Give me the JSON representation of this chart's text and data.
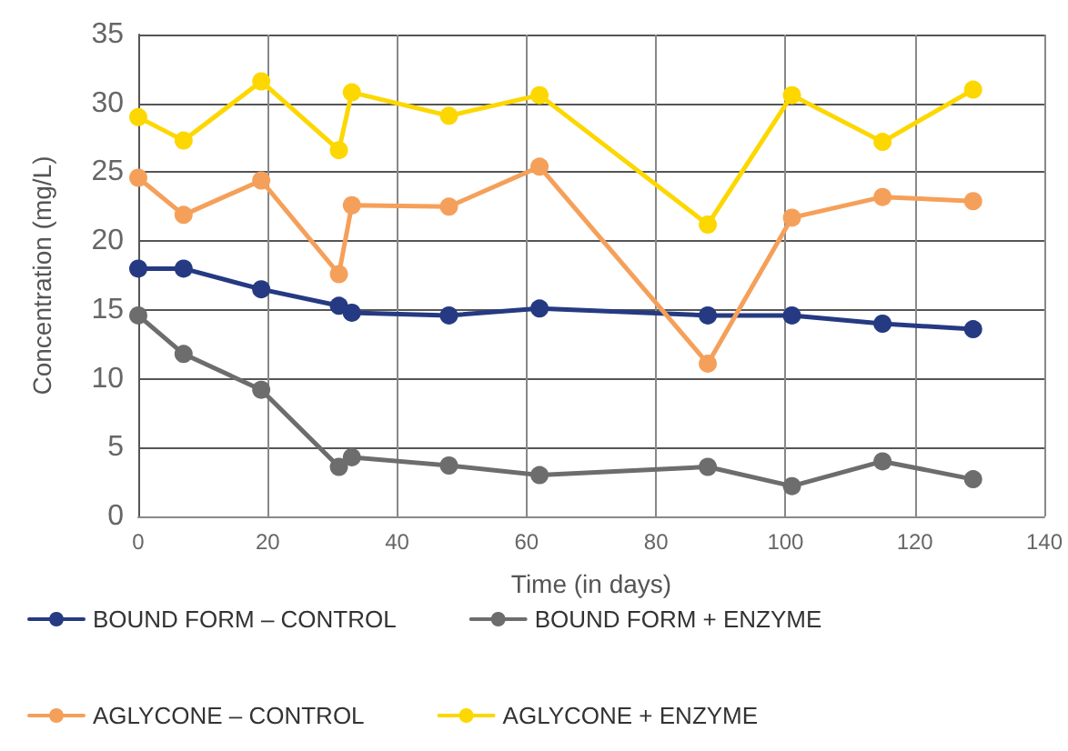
{
  "chart_data": {
    "type": "line",
    "xlabel": "Time (in days)",
    "ylabel": "Concentration (mg/L)",
    "x": [
      0,
      7,
      19,
      31,
      33,
      48,
      62,
      88,
      101,
      115,
      129
    ],
    "series": [
      {
        "name": "BOUND FORM – CONTROL",
        "color": "#253a82",
        "values": [
          18.0,
          18.0,
          16.5,
          15.3,
          14.8,
          14.6,
          15.1,
          14.6,
          14.6,
          14.0,
          13.6
        ]
      },
      {
        "name": "BOUND FORM + ENZYME",
        "color": "#6d6d6d",
        "values": [
          14.6,
          11.8,
          9.2,
          3.6,
          4.3,
          3.7,
          3.0,
          3.6,
          2.2,
          4.0,
          2.7
        ]
      },
      {
        "name": "AGLYCONE – CONTROL",
        "color": "#f5a05a",
        "values": [
          24.6,
          21.9,
          24.4,
          17.6,
          22.6,
          22.5,
          25.4,
          11.1,
          21.7,
          23.2,
          22.9
        ]
      },
      {
        "name": "AGLYCONE + ENZYME",
        "color": "#fdd700",
        "values": [
          29.0,
          27.3,
          31.6,
          26.6,
          30.8,
          29.1,
          30.6,
          21.2,
          30.6,
          27.2,
          31.0
        ]
      }
    ],
    "xlim": [
      0,
      140
    ],
    "xticks": [
      0,
      20,
      40,
      60,
      80,
      100,
      120,
      140
    ],
    "ylim": [
      0,
      35
    ],
    "yticks": [
      0,
      5,
      10,
      15,
      20,
      25,
      30,
      35
    ],
    "grid": true,
    "legend": "bottom",
    "marker": "circle",
    "line_style": "solid"
  }
}
